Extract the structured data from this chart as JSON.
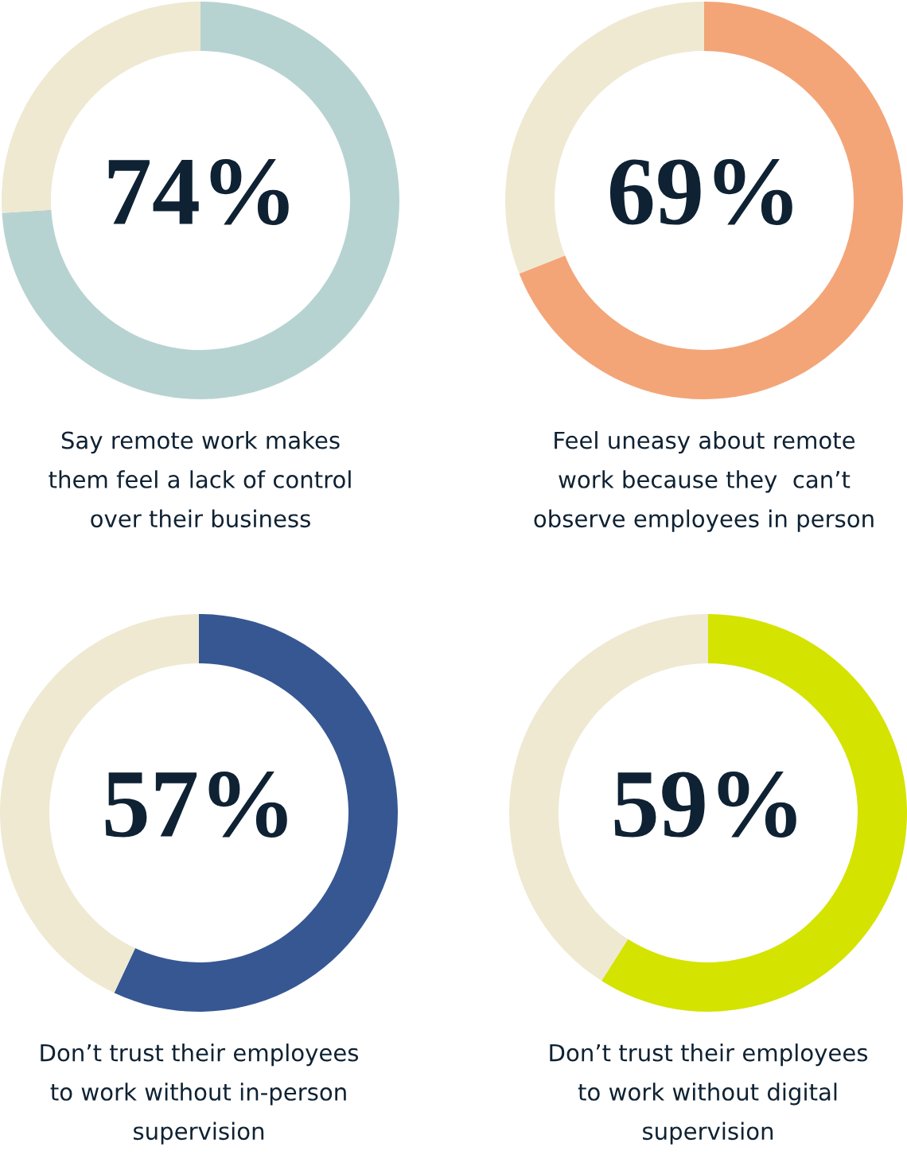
{
  "chart_data": [
    {
      "type": "donut",
      "title": "Say remote work makes\nthem feel a lack of control\nover their business",
      "categories": [
        null,
        null
      ],
      "values": [
        74,
        26
      ],
      "colors": [
        "#b7d3d1",
        "#efe9d2"
      ],
      "value_labels": [
        "74%",
        null
      ]
    },
    {
      "type": "donut",
      "title": "Feel uneasy about remote\nwork because they  can’t\nobserve employees in person",
      "categories": [
        null,
        null
      ],
      "values": [
        69,
        31
      ],
      "colors": [
        "#f3a578",
        "#efe9d2"
      ],
      "value_labels": [
        "69%",
        null
      ]
    },
    {
      "type": "donut",
      "title": "Don’t trust their employees\nto work without in-person\nsupervision",
      "categories": [
        null,
        null
      ],
      "values": [
        57,
        43
      ],
      "colors": [
        "#375793",
        "#efe9d2"
      ],
      "value_labels": [
        "57%",
        null
      ]
    },
    {
      "type": "donut",
      "title": "Don’t trust their employees\nto work without digital\nsupervision",
      "categories": [
        null,
        null
      ],
      "values": [
        59,
        41
      ],
      "colors": [
        "#d4e300",
        "#efe9d2"
      ],
      "value_labels": [
        "59%",
        null
      ]
    }
  ]
}
